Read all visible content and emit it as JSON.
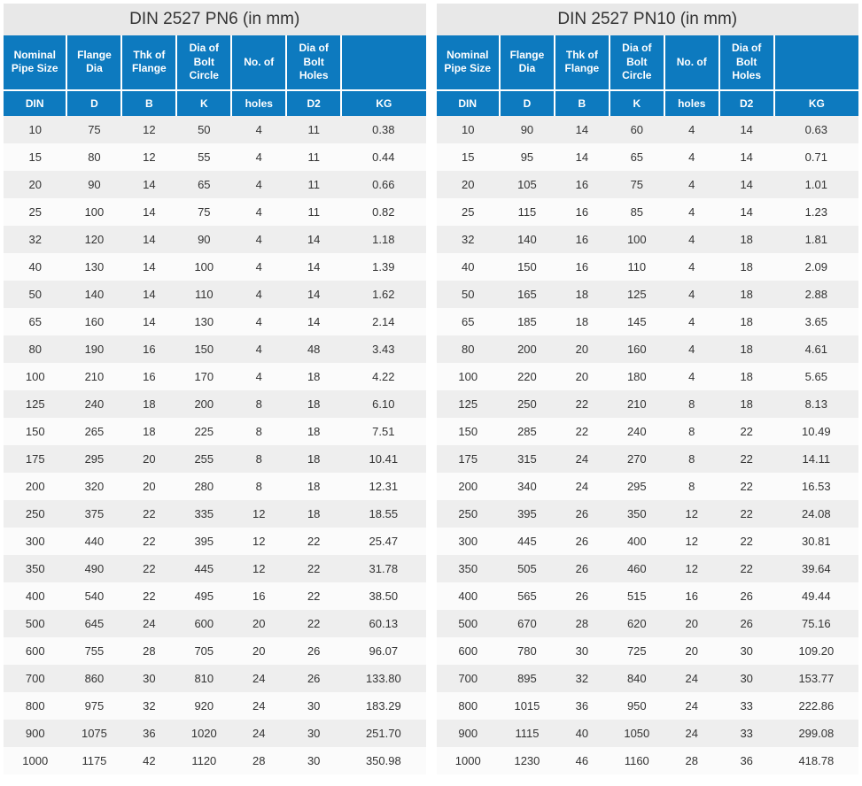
{
  "tables": [
    {
      "title": "DIN 2527 PN6 (in mm)",
      "headers1": [
        "Nominal Pipe Size",
        "Flange Dia",
        "Thk of Flange",
        "Dia of Bolt Circle",
        "No. of",
        "Dia of Bolt Holes",
        ""
      ],
      "headers2": [
        "DIN",
        "D",
        "B",
        "K",
        "holes",
        "D2",
        "KG"
      ],
      "col_widths": [
        "15%",
        "13%",
        "13%",
        "13%",
        "13%",
        "13%",
        "20%"
      ],
      "rows": [
        [
          "10",
          "75",
          "12",
          "50",
          "4",
          "11",
          "0.38"
        ],
        [
          "15",
          "80",
          "12",
          "55",
          "4",
          "11",
          "0.44"
        ],
        [
          "20",
          "90",
          "14",
          "65",
          "4",
          "11",
          "0.66"
        ],
        [
          "25",
          "100",
          "14",
          "75",
          "4",
          "11",
          "0.82"
        ],
        [
          "32",
          "120",
          "14",
          "90",
          "4",
          "14",
          "1.18"
        ],
        [
          "40",
          "130",
          "14",
          "100",
          "4",
          "14",
          "1.39"
        ],
        [
          "50",
          "140",
          "14",
          "110",
          "4",
          "14",
          "1.62"
        ],
        [
          "65",
          "160",
          "14",
          "130",
          "4",
          "14",
          "2.14"
        ],
        [
          "80",
          "190",
          "16",
          "150",
          "4",
          "48",
          "3.43"
        ],
        [
          "100",
          "210",
          "16",
          "170",
          "4",
          "18",
          "4.22"
        ],
        [
          "125",
          "240",
          "18",
          "200",
          "8",
          "18",
          "6.10"
        ],
        [
          "150",
          "265",
          "18",
          "225",
          "8",
          "18",
          "7.51"
        ],
        [
          "175",
          "295",
          "20",
          "255",
          "8",
          "18",
          "10.41"
        ],
        [
          "200",
          "320",
          "20",
          "280",
          "8",
          "18",
          "12.31"
        ],
        [
          "250",
          "375",
          "22",
          "335",
          "12",
          "18",
          "18.55"
        ],
        [
          "300",
          "440",
          "22",
          "395",
          "12",
          "22",
          "25.47"
        ],
        [
          "350",
          "490",
          "22",
          "445",
          "12",
          "22",
          "31.78"
        ],
        [
          "400",
          "540",
          "22",
          "495",
          "16",
          "22",
          "38.50"
        ],
        [
          "500",
          "645",
          "24",
          "600",
          "20",
          "22",
          "60.13"
        ],
        [
          "600",
          "755",
          "28",
          "705",
          "20",
          "26",
          "96.07"
        ],
        [
          "700",
          "860",
          "30",
          "810",
          "24",
          "26",
          "133.80"
        ],
        [
          "800",
          "975",
          "32",
          "920",
          "24",
          "30",
          "183.29"
        ],
        [
          "900",
          "1075",
          "36",
          "1020",
          "24",
          "30",
          "251.70"
        ],
        [
          "1000",
          "1175",
          "42",
          "1120",
          "28",
          "30",
          "350.98"
        ]
      ]
    },
    {
      "title": "DIN 2527 PN10 (in mm)",
      "headers1": [
        "Nominal Pipe Size",
        "Flange Dia",
        "Thk of Flange",
        "Dia of Bolt Circle",
        "No. of",
        "Dia of Bolt Holes",
        ""
      ],
      "headers2": [
        "DIN",
        "D",
        "B",
        "K",
        "holes",
        "D2",
        "KG"
      ],
      "col_widths": [
        "15%",
        "13%",
        "13%",
        "13%",
        "13%",
        "13%",
        "20%"
      ],
      "rows": [
        [
          "10",
          "90",
          "14",
          "60",
          "4",
          "14",
          "0.63"
        ],
        [
          "15",
          "95",
          "14",
          "65",
          "4",
          "14",
          "0.71"
        ],
        [
          "20",
          "105",
          "16",
          "75",
          "4",
          "14",
          "1.01"
        ],
        [
          "25",
          "115",
          "16",
          "85",
          "4",
          "14",
          "1.23"
        ],
        [
          "32",
          "140",
          "16",
          "100",
          "4",
          "18",
          "1.81"
        ],
        [
          "40",
          "150",
          "16",
          "110",
          "4",
          "18",
          "2.09"
        ],
        [
          "50",
          "165",
          "18",
          "125",
          "4",
          "18",
          "2.88"
        ],
        [
          "65",
          "185",
          "18",
          "145",
          "4",
          "18",
          "3.65"
        ],
        [
          "80",
          "200",
          "20",
          "160",
          "4",
          "18",
          "4.61"
        ],
        [
          "100",
          "220",
          "20",
          "180",
          "4",
          "18",
          "5.65"
        ],
        [
          "125",
          "250",
          "22",
          "210",
          "8",
          "18",
          "8.13"
        ],
        [
          "150",
          "285",
          "22",
          "240",
          "8",
          "22",
          "10.49"
        ],
        [
          "175",
          "315",
          "24",
          "270",
          "8",
          "22",
          "14.11"
        ],
        [
          "200",
          "340",
          "24",
          "295",
          "8",
          "22",
          "16.53"
        ],
        [
          "250",
          "395",
          "26",
          "350",
          "12",
          "22",
          "24.08"
        ],
        [
          "300",
          "445",
          "26",
          "400",
          "12",
          "22",
          "30.81"
        ],
        [
          "350",
          "505",
          "26",
          "460",
          "12",
          "22",
          "39.64"
        ],
        [
          "400",
          "565",
          "26",
          "515",
          "16",
          "26",
          "49.44"
        ],
        [
          "500",
          "670",
          "28",
          "620",
          "20",
          "26",
          "75.16"
        ],
        [
          "600",
          "780",
          "30",
          "725",
          "20",
          "30",
          "109.20"
        ],
        [
          "700",
          "895",
          "32",
          "840",
          "24",
          "30",
          "153.77"
        ],
        [
          "800",
          "1015",
          "36",
          "950",
          "24",
          "33",
          "222.86"
        ],
        [
          "900",
          "1115",
          "40",
          "1050",
          "24",
          "33",
          "299.08"
        ],
        [
          "1000",
          "1230",
          "46",
          "1160",
          "28",
          "36",
          "418.78"
        ]
      ]
    }
  ],
  "colors": {
    "header_bg": "#0d7abf",
    "header_fg": "#ffffff",
    "title_bg": "#e8e8e8",
    "row_odd_bg": "#eeeeee",
    "row_even_bg": "#fbfbfb",
    "cell_fg": "#333333"
  }
}
